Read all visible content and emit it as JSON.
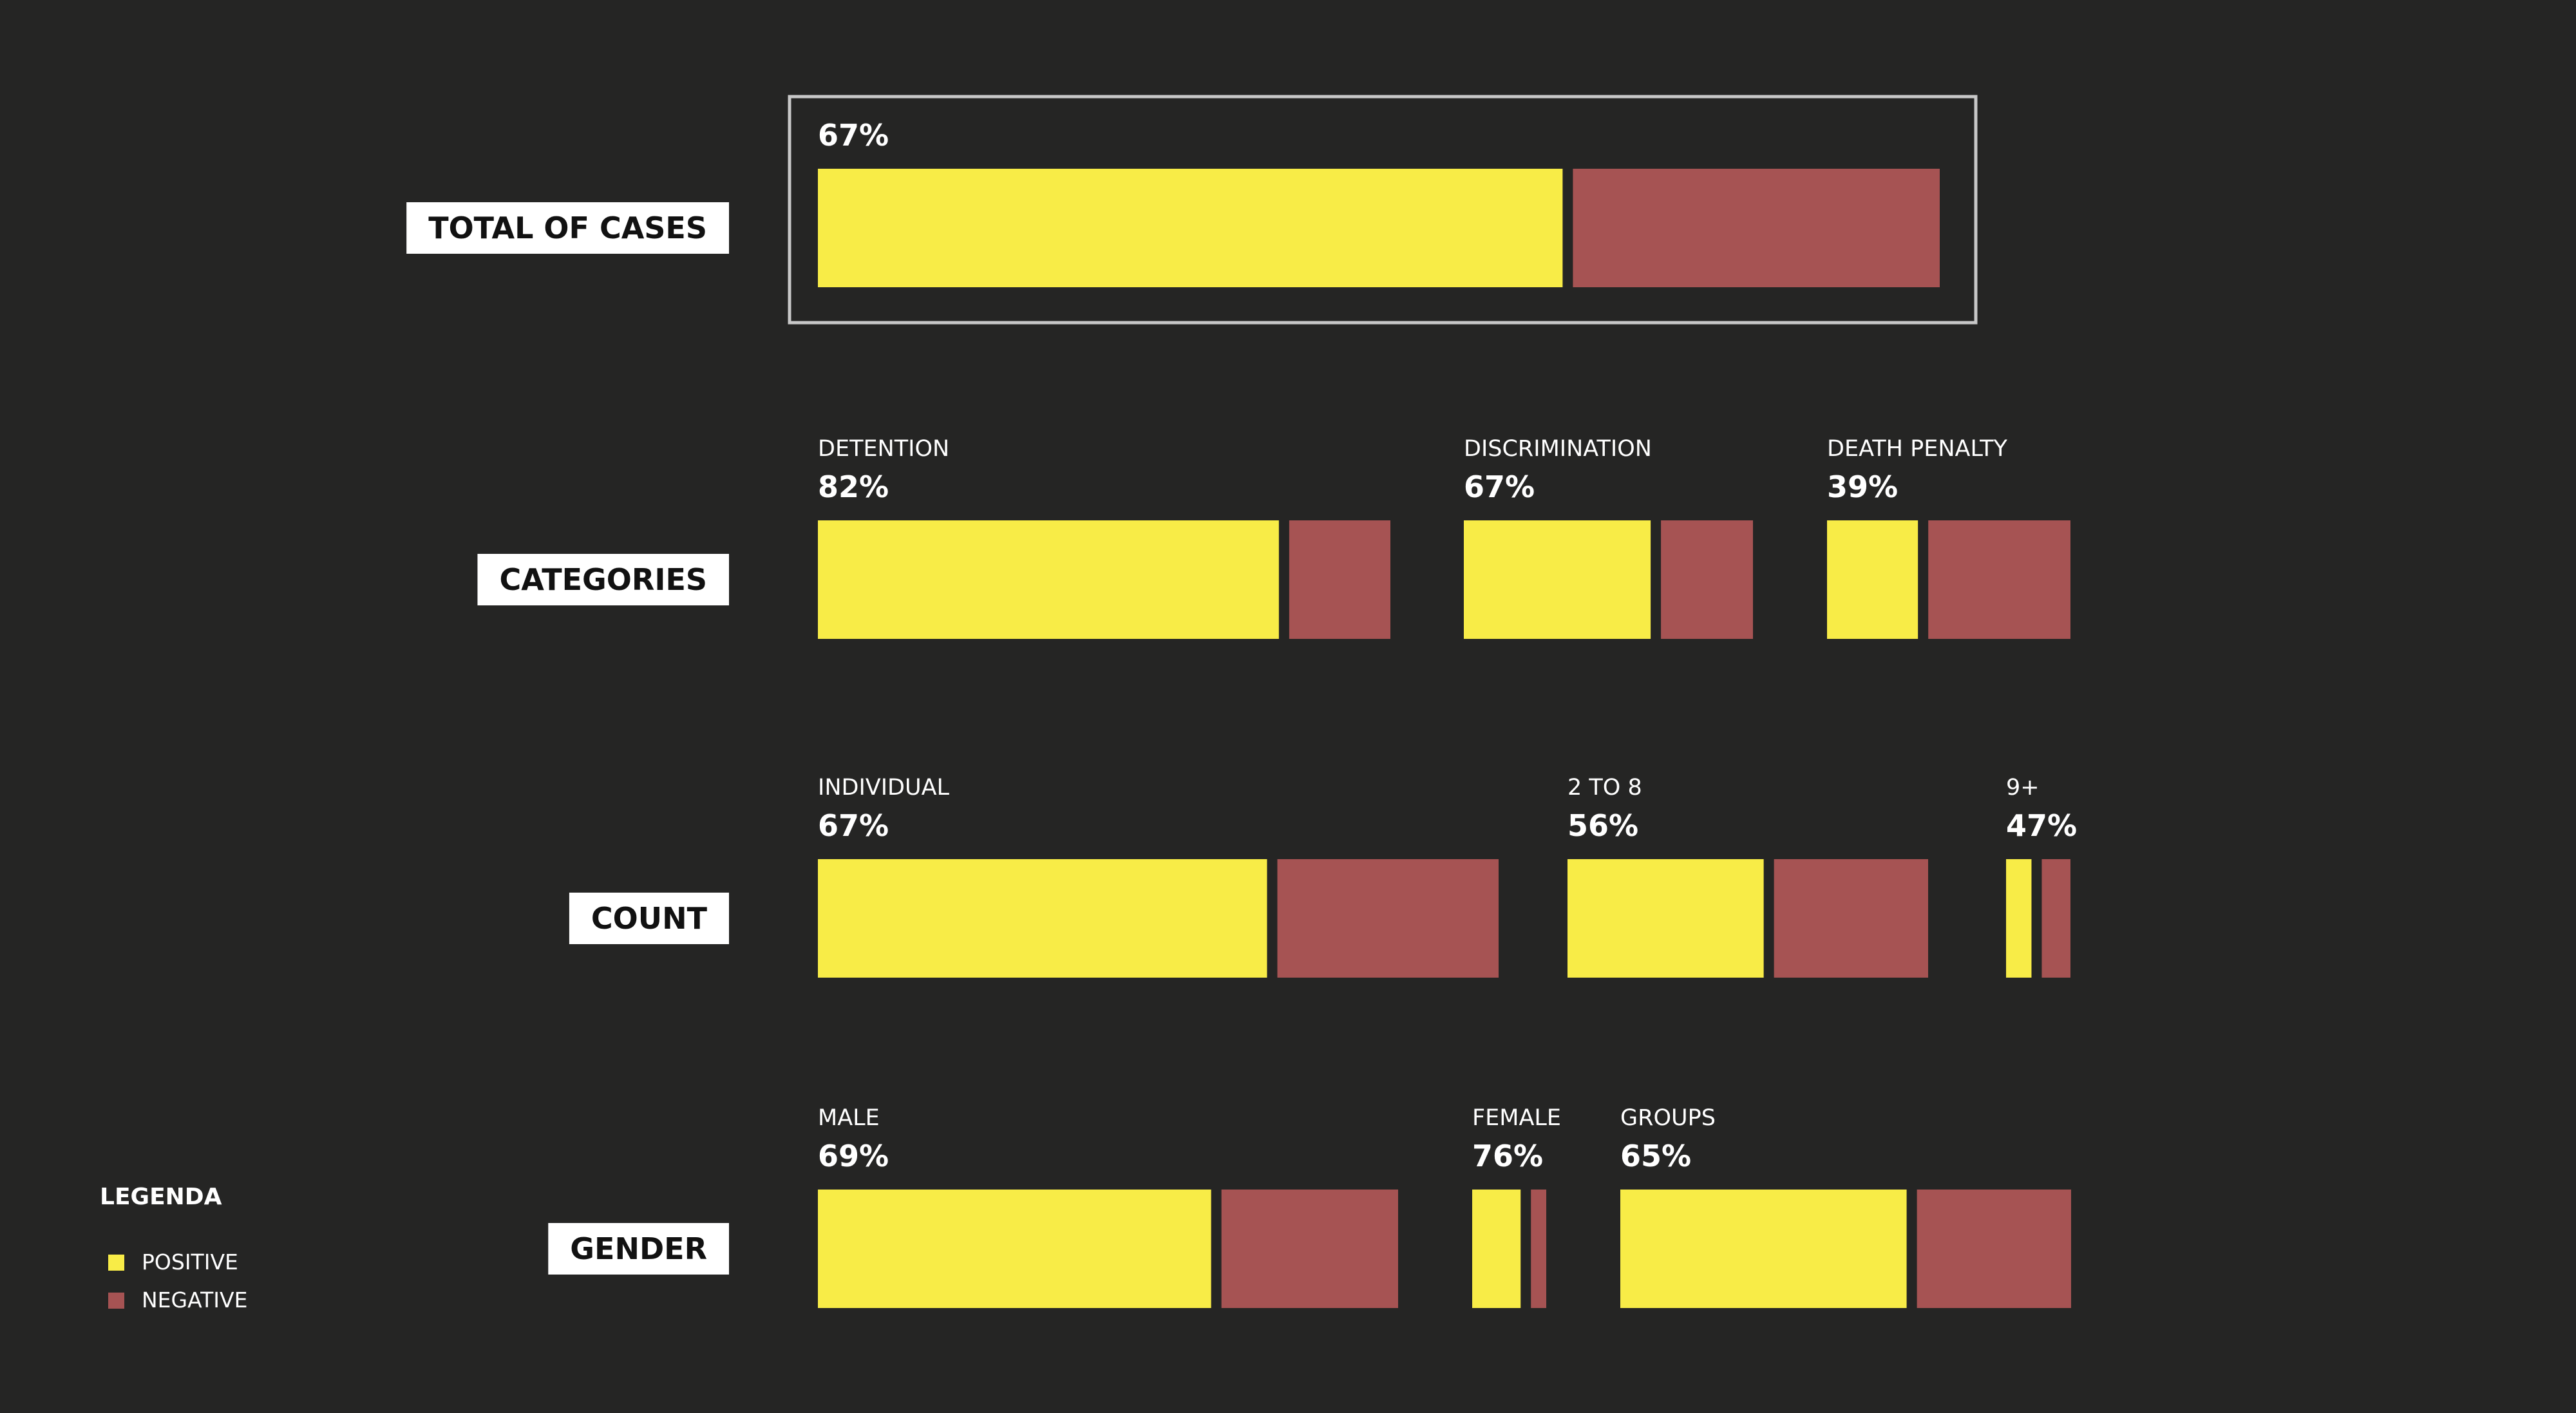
{
  "colors": {
    "background": "#252524",
    "positive": "#f8ec47",
    "negative": "#a65353",
    "label_box": "#ffffff",
    "highlight_frame": "#c8c8c8"
  },
  "legend": {
    "title": "LEGENDA",
    "items": [
      {
        "label": "POSITIVE",
        "color": "#f8ec47"
      },
      {
        "label": "NEGATIVE",
        "color": "#a65353"
      }
    ]
  },
  "chart_data": {
    "type": "bar",
    "orientation": "horizontal",
    "stacked": true,
    "series_names": [
      "POSITIVE",
      "NEGATIVE"
    ],
    "highlighted_row": "TOTAL OF CASES",
    "rows": [
      {
        "label": "TOTAL OF CASES",
        "groups": [
          {
            "name": "",
            "pct_label": "67%",
            "positive": 67,
            "negative": 33,
            "relative_size": 100
          }
        ]
      },
      {
        "label": "CATEGORIES",
        "groups": [
          {
            "name": "DETENTION",
            "pct_label": "82%",
            "positive": 82,
            "negative": 18,
            "relative_size": 100
          },
          {
            "name": "DISCRIMINATION",
            "pct_label": "67%",
            "positive": 67,
            "negative": 33,
            "relative_size": 50
          },
          {
            "name": "DEATH PENALTY",
            "pct_label": "39%",
            "positive": 39,
            "negative": 61,
            "relative_size": 42
          }
        ]
      },
      {
        "label": "COUNT",
        "groups": [
          {
            "name": "INDIVIDUAL",
            "pct_label": "67%",
            "positive": 67,
            "negative": 33,
            "relative_size": 100
          },
          {
            "name": "2 TO 8",
            "pct_label": "56%",
            "positive": 56,
            "negative": 44,
            "relative_size": 53
          },
          {
            "name": "9+",
            "pct_label": "47%",
            "positive": 47,
            "negative": 53,
            "relative_size": 9
          }
        ]
      },
      {
        "label": "GENDER",
        "groups": [
          {
            "name": "MALE",
            "pct_label": "69%",
            "positive": 69,
            "negative": 31,
            "relative_size": 100
          },
          {
            "name": "FEMALE",
            "pct_label": "76%",
            "positive": 76,
            "negative": 24,
            "relative_size": 13
          },
          {
            "name": "GROUPS",
            "pct_label": "65%",
            "positive": 65,
            "negative": 35,
            "relative_size": 78
          }
        ]
      }
    ]
  }
}
